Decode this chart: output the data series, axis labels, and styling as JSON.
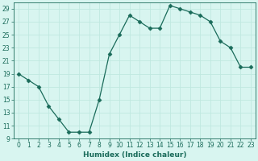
{
  "x": [
    0,
    1,
    2,
    3,
    4,
    5,
    6,
    7,
    8,
    9,
    10,
    11,
    12,
    13,
    14,
    15,
    16,
    17,
    18,
    19,
    20,
    21,
    22,
    23
  ],
  "y": [
    19,
    18,
    17,
    14,
    12,
    10,
    10,
    10,
    15,
    22,
    25,
    28,
    27,
    26,
    26,
    29.5,
    29,
    28.5,
    28,
    27,
    24,
    23,
    20,
    20
  ],
  "line_color": "#1a6b5a",
  "marker": "D",
  "marker_size": 2.5,
  "bg_color": "#d8f5f0",
  "grid_color": "#c0e8e0",
  "xlabel": "Humidex (Indice chaleur)",
  "xlim": [
    -0.5,
    23.5
  ],
  "ylim": [
    9,
    30
  ],
  "yticks": [
    9,
    11,
    13,
    15,
    17,
    19,
    21,
    23,
    25,
    27,
    29
  ],
  "xticks": [
    0,
    1,
    2,
    3,
    4,
    5,
    6,
    7,
    8,
    9,
    10,
    11,
    12,
    13,
    14,
    15,
    16,
    17,
    18,
    19,
    20,
    21,
    22,
    23
  ],
  "xlabel_fontsize": 6.5,
  "tick_fontsize": 5.5
}
